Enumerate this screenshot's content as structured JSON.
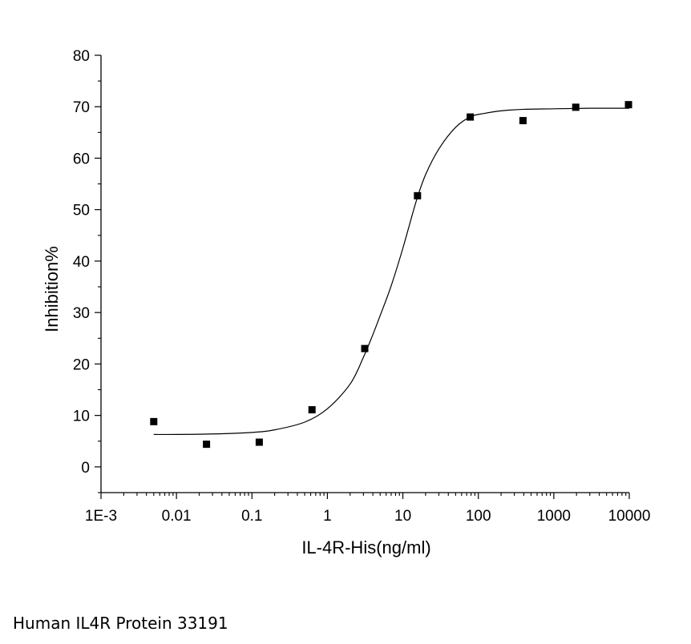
{
  "chart_data": {
    "type": "scatter",
    "title": "",
    "xlabel": "IL-4R-His(ng/ml)",
    "ylabel": "Inhibition%",
    "x_scale": "log",
    "xlim": [
      0.001,
      10000
    ],
    "ylim": [
      -5,
      80
    ],
    "x_ticks": [
      0.001,
      0.01,
      0.1,
      1,
      10,
      100,
      1000,
      10000
    ],
    "x_tick_labels": [
      "1E-3",
      "0.01",
      "0.1",
      "1",
      "10",
      "100",
      "1000",
      "10000"
    ],
    "y_ticks": [
      0,
      10,
      20,
      30,
      40,
      50,
      60,
      70,
      80
    ],
    "y_tick_labels": [
      "0",
      "10",
      "20",
      "30",
      "40",
      "50",
      "60",
      "70",
      "80"
    ],
    "grid": false,
    "legend": "none",
    "series": [
      {
        "marker": "square",
        "color": "#000000",
        "x": [
          0.005,
          0.025,
          0.125,
          0.625,
          3.125,
          15.625,
          78.125,
          390.625,
          1953.125,
          9765.625
        ],
        "y": [
          8.8,
          4.4,
          4.8,
          11.1,
          23.0,
          52.7,
          68.0,
          67.3,
          69.9,
          70.4
        ]
      }
    ],
    "fit_curve": {
      "style": "line",
      "color": "#000000",
      "x": [
        0.005,
        0.01,
        0.03,
        0.1,
        0.2,
        0.5,
        1,
        2,
        3,
        4,
        5,
        7,
        10,
        15,
        20,
        30,
        50,
        80,
        120,
        200,
        400,
        1000,
        3000,
        10000
      ],
      "y": [
        6.3,
        6.3,
        6.4,
        6.7,
        7.2,
        8.7,
        11.3,
        16.1,
        21.3,
        25.7,
        29.4,
        35.2,
        42.5,
        51.6,
        56.8,
        61.8,
        66.0,
        68.1,
        68.7,
        69.2,
        69.5,
        69.6,
        69.7,
        69.7
      ]
    }
  },
  "caption": "Human IL4R Protein 33191"
}
